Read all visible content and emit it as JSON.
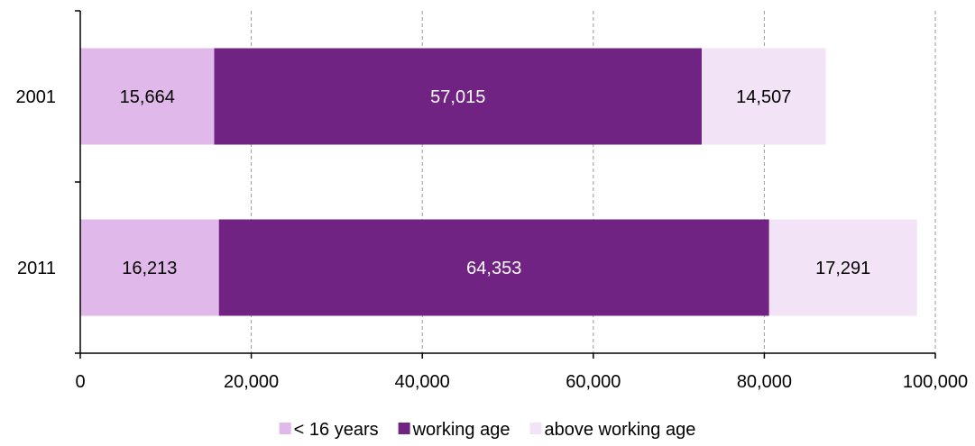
{
  "chart_data": {
    "type": "bar",
    "orientation": "horizontal",
    "stacked": true,
    "title": "",
    "xlabel": "",
    "ylabel": "",
    "categories": [
      "2001",
      "2011"
    ],
    "series": [
      {
        "name": "< 16 years",
        "values": [
          15664,
          16213
        ],
        "color": "#e0b8ea",
        "label_color": "#000000"
      },
      {
        "name": "working age",
        "values": [
          57015,
          64353
        ],
        "color": "#702383",
        "label_color": "#ffffff"
      },
      {
        "name": "above working age",
        "values": [
          14507,
          17291
        ],
        "color": "#f2e3f6",
        "label_color": "#000000"
      }
    ],
    "data_labels": [
      [
        "15,664",
        "57,015",
        "14,507"
      ],
      [
        "16,213",
        "64,353",
        "17,291"
      ]
    ],
    "xlim": [
      0,
      100000
    ],
    "x_ticks": [
      0,
      20000,
      40000,
      60000,
      80000,
      100000
    ],
    "x_tick_labels": [
      "0",
      "20,000",
      "40,000",
      "60,000",
      "80,000",
      "100,000"
    ],
    "grid": "vertical dashed",
    "legend_position": "bottom"
  }
}
